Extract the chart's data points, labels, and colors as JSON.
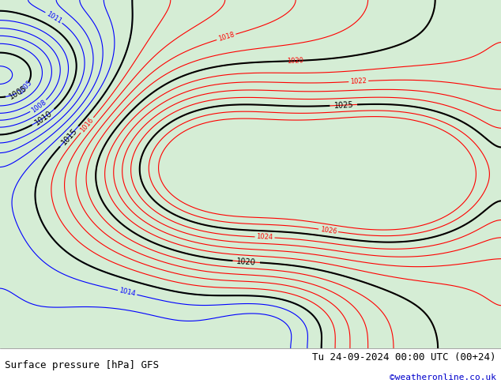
{
  "title_left": "Surface pressure [hPa] GFS",
  "title_right": "Tu 24-09-2024 00:00 UTC (00+24)",
  "credit": "©weatheronline.co.uk",
  "credit_color": "#0000cc",
  "bg_color": "#f0f0f0",
  "land_color": "#90ee90",
  "sea_color": "#e8e8f0",
  "isobar_color_red": "#ff0000",
  "isobar_color_blue": "#0000ff",
  "isobar_color_black": "#000000",
  "label_fontsize": 8,
  "footer_fontsize": 9,
  "figsize": [
    6.34,
    4.9
  ],
  "dpi": 100
}
